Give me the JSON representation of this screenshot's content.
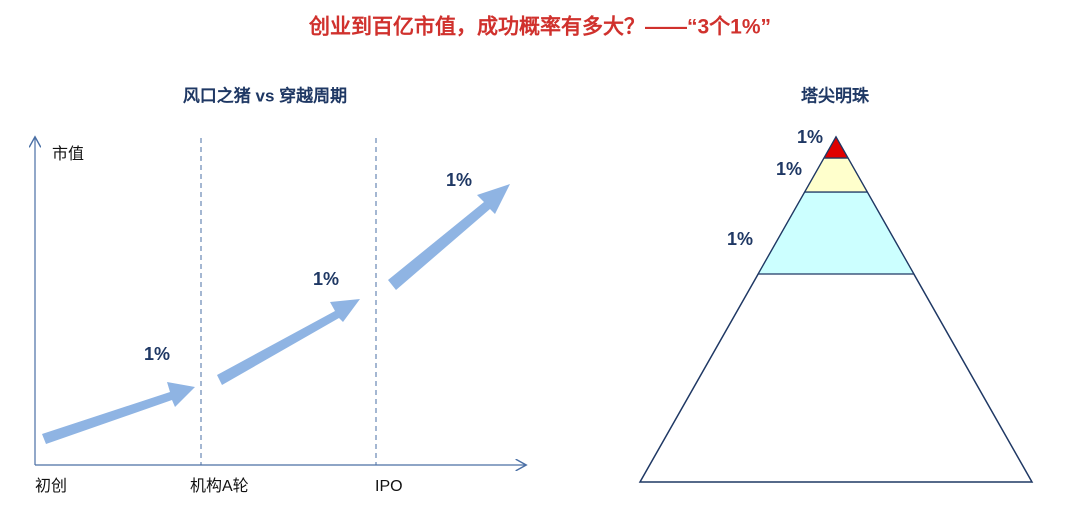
{
  "title": "创业到百亿市值，成功概率有多大？——“3个1%”",
  "left_panel": {
    "title": "风口之猪 vs 穿越周期",
    "y_axis_label": "市值",
    "stages": [
      "初创",
      "机构A轮",
      "IPO"
    ],
    "arrow_labels": [
      "1%",
      "1%",
      "1%"
    ]
  },
  "right_panel": {
    "title": "塔尖明珠",
    "tier_labels": [
      "1%",
      "1%",
      "1%"
    ]
  }
}
